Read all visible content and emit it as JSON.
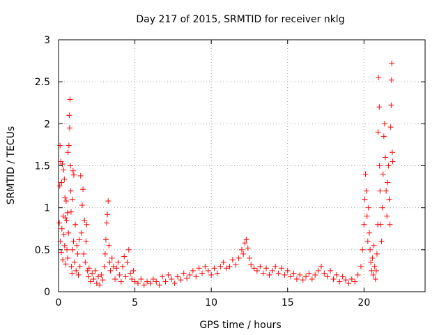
{
  "chart_data": {
    "type": "scatter",
    "title": "Day 217 of 2015, SRMTID for receiver nklg",
    "xlabel": "GPS time / hours",
    "ylabel": "SRMTID / TECUs",
    "xlim": [
      0,
      24
    ],
    "ylim": [
      0,
      3
    ],
    "xticks": [
      0,
      5,
      10,
      15,
      20
    ],
    "yticks": [
      0,
      0.5,
      1,
      1.5,
      2,
      2.5,
      3
    ],
    "xtick_labels": [
      "0",
      "5",
      "10",
      "15",
      "20"
    ],
    "ytick_labels": [
      "0",
      "0.5",
      "1",
      "1.5",
      "2",
      "2.5",
      "3"
    ],
    "grid": true,
    "marker": "+",
    "series": [
      {
        "name": "SRMTID",
        "color": "#ff0000",
        "points": [
          [
            0.05,
            0.82
          ],
          [
            0.08,
            1.26
          ],
          [
            0.1,
            1.74
          ],
          [
            0.12,
            0.6
          ],
          [
            0.15,
            1.55
          ],
          [
            0.18,
            0.47
          ],
          [
            0.2,
            1.3
          ],
          [
            0.22,
            0.75
          ],
          [
            0.25,
            1.52
          ],
          [
            0.28,
            0.38
          ],
          [
            0.3,
            0.9
          ],
          [
            0.33,
            1.45
          ],
          [
            0.35,
            0.68
          ],
          [
            0.38,
            1.34
          ],
          [
            0.4,
            0.55
          ],
          [
            0.42,
            1.12
          ],
          [
            0.45,
            0.88
          ],
          [
            0.48,
            0.33
          ],
          [
            0.5,
            1.08
          ],
          [
            0.52,
            0.85
          ],
          [
            0.55,
            0.5
          ],
          [
            0.58,
            0.94
          ],
          [
            0.6,
            0.4
          ],
          [
            0.62,
            1.66
          ],
          [
            0.65,
            0.7
          ],
          [
            0.68,
            1.74
          ],
          [
            0.7,
            2.1
          ],
          [
            0.72,
            1.95
          ],
          [
            0.75,
            2.29
          ],
          [
            0.78,
            1.5
          ],
          [
            0.8,
            1.2
          ],
          [
            0.82,
            0.95
          ],
          [
            0.85,
            0.3
          ],
          [
            0.88,
            0.22
          ],
          [
            0.9,
            1.1
          ],
          [
            0.92,
            0.5
          ],
          [
            0.95,
            1.44
          ],
          [
            0.98,
            0.6
          ],
          [
            1.0,
            1.39
          ],
          [
            1.05,
            0.35
          ],
          [
            1.1,
            0.8
          ],
          [
            1.15,
            0.25
          ],
          [
            1.2,
            0.55
          ],
          [
            1.25,
            0.45
          ],
          [
            1.3,
            0.2
          ],
          [
            1.35,
            0.62
          ],
          [
            1.4,
            0.3
          ],
          [
            1.45,
            1.38
          ],
          [
            1.5,
            0.7
          ],
          [
            1.55,
            1.03
          ],
          [
            1.6,
            1.22
          ],
          [
            1.65,
            0.45
          ],
          [
            1.7,
            0.85
          ],
          [
            1.75,
            0.35
          ],
          [
            1.8,
            0.6
          ],
          [
            1.85,
            0.8
          ],
          [
            1.9,
            0.25
          ],
          [
            1.95,
            0.18
          ],
          [
            2.0,
            0.28
          ],
          [
            2.1,
            0.12
          ],
          [
            2.2,
            0.22
          ],
          [
            2.3,
            0.15
          ],
          [
            2.4,
            0.25
          ],
          [
            2.5,
            0.1
          ],
          [
            2.6,
            0.18
          ],
          [
            2.7,
            0.08
          ],
          [
            2.8,
            0.2
          ],
          [
            2.9,
            0.14
          ],
          [
            3.0,
            0.3
          ],
          [
            3.05,
            0.45
          ],
          [
            3.1,
            0.62
          ],
          [
            3.15,
            0.82
          ],
          [
            3.2,
            0.92
          ],
          [
            3.25,
            1.08
          ],
          [
            3.3,
            0.55
          ],
          [
            3.35,
            0.35
          ],
          [
            3.4,
            0.25
          ],
          [
            3.5,
            0.4
          ],
          [
            3.6,
            0.3
          ],
          [
            3.7,
            0.15
          ],
          [
            3.8,
            0.28
          ],
          [
            3.9,
            0.35
          ],
          [
            4.0,
            0.2
          ],
          [
            4.1,
            0.12
          ],
          [
            4.2,
            0.3
          ],
          [
            4.3,
            0.42
          ],
          [
            4.4,
            0.18
          ],
          [
            4.5,
            0.35
          ],
          [
            4.6,
            0.5
          ],
          [
            4.7,
            0.22
          ],
          [
            4.8,
            0.15
          ],
          [
            4.9,
            0.25
          ],
          [
            5.0,
            0.12
          ],
          [
            5.2,
            0.1
          ],
          [
            5.4,
            0.15
          ],
          [
            5.6,
            0.08
          ],
          [
            5.8,
            0.12
          ],
          [
            6.0,
            0.1
          ],
          [
            6.2,
            0.15
          ],
          [
            6.4,
            0.12
          ],
          [
            6.6,
            0.08
          ],
          [
            6.8,
            0.18
          ],
          [
            7.0,
            0.12
          ],
          [
            7.2,
            0.2
          ],
          [
            7.4,
            0.15
          ],
          [
            7.6,
            0.1
          ],
          [
            7.8,
            0.18
          ],
          [
            8.0,
            0.14
          ],
          [
            8.2,
            0.22
          ],
          [
            8.4,
            0.16
          ],
          [
            8.6,
            0.2
          ],
          [
            8.8,
            0.25
          ],
          [
            9.0,
            0.18
          ],
          [
            9.2,
            0.28
          ],
          [
            9.4,
            0.22
          ],
          [
            9.6,
            0.3
          ],
          [
            9.8,
            0.25
          ],
          [
            10.0,
            0.2
          ],
          [
            10.2,
            0.28
          ],
          [
            10.4,
            0.22
          ],
          [
            10.6,
            0.3
          ],
          [
            10.8,
            0.35
          ],
          [
            11.0,
            0.28
          ],
          [
            11.2,
            0.3
          ],
          [
            11.4,
            0.38
          ],
          [
            11.6,
            0.32
          ],
          [
            11.8,
            0.4
          ],
          [
            12.0,
            0.5
          ],
          [
            12.1,
            0.45
          ],
          [
            12.2,
            0.58
          ],
          [
            12.3,
            0.62
          ],
          [
            12.4,
            0.52
          ],
          [
            12.5,
            0.4
          ],
          [
            12.6,
            0.32
          ],
          [
            12.8,
            0.28
          ],
          [
            13.0,
            0.25
          ],
          [
            13.2,
            0.3
          ],
          [
            13.4,
            0.22
          ],
          [
            13.6,
            0.28
          ],
          [
            13.8,
            0.2
          ],
          [
            14.0,
            0.25
          ],
          [
            14.2,
            0.3
          ],
          [
            14.4,
            0.22
          ],
          [
            14.6,
            0.28
          ],
          [
            14.8,
            0.2
          ],
          [
            15.0,
            0.25
          ],
          [
            15.2,
            0.18
          ],
          [
            15.4,
            0.22
          ],
          [
            15.6,
            0.15
          ],
          [
            15.8,
            0.2
          ],
          [
            16.0,
            0.14
          ],
          [
            16.2,
            0.18
          ],
          [
            16.4,
            0.22
          ],
          [
            16.6,
            0.15
          ],
          [
            16.8,
            0.2
          ],
          [
            17.0,
            0.25
          ],
          [
            17.2,
            0.3
          ],
          [
            17.4,
            0.22
          ],
          [
            17.6,
            0.18
          ],
          [
            17.8,
            0.25
          ],
          [
            18.0,
            0.15
          ],
          [
            18.2,
            0.2
          ],
          [
            18.4,
            0.12
          ],
          [
            18.6,
            0.18
          ],
          [
            18.8,
            0.14
          ],
          [
            19.0,
            0.1
          ],
          [
            19.2,
            0.15
          ],
          [
            19.4,
            0.12
          ],
          [
            19.6,
            0.2
          ],
          [
            19.8,
            0.3
          ],
          [
            19.9,
            0.5
          ],
          [
            20.0,
            0.8
          ],
          [
            20.05,
            1.1
          ],
          [
            20.1,
            1.4
          ],
          [
            20.15,
            1.2
          ],
          [
            20.2,
            0.9
          ],
          [
            20.25,
            0.6
          ],
          [
            20.3,
            1.0
          ],
          [
            20.35,
            0.7
          ],
          [
            20.4,
            0.5
          ],
          [
            20.45,
            0.35
          ],
          [
            20.5,
            0.25
          ],
          [
            20.55,
            0.4
          ],
          [
            20.6,
            0.2
          ],
          [
            20.65,
            0.55
          ],
          [
            20.7,
            0.3
          ],
          [
            20.75,
            0.15
          ],
          [
            20.8,
            0.25
          ],
          [
            20.85,
            0.45
          ],
          [
            20.9,
            0.8
          ],
          [
            20.92,
            1.9
          ],
          [
            20.95,
            2.55
          ],
          [
            21.0,
            2.2
          ],
          [
            21.02,
            1.5
          ],
          [
            21.05,
            1.2
          ],
          [
            21.1,
            0.8
          ],
          [
            21.15,
            0.6
          ],
          [
            21.2,
            1.0
          ],
          [
            21.25,
            1.4
          ],
          [
            21.3,
            1.85
          ],
          [
            21.35,
            2.0
          ],
          [
            21.4,
            1.6
          ],
          [
            21.45,
            1.2
          ],
          [
            21.5,
            0.9
          ],
          [
            21.55,
            1.3
          ],
          [
            21.6,
            1.5
          ],
          [
            21.65,
            1.1
          ],
          [
            21.7,
            0.8
          ],
          [
            21.75,
            1.96
          ],
          [
            21.78,
            2.22
          ],
          [
            21.8,
            2.52
          ],
          [
            21.82,
            2.72
          ],
          [
            21.85,
            1.66
          ],
          [
            21.88,
            1.55
          ]
        ]
      }
    ]
  }
}
